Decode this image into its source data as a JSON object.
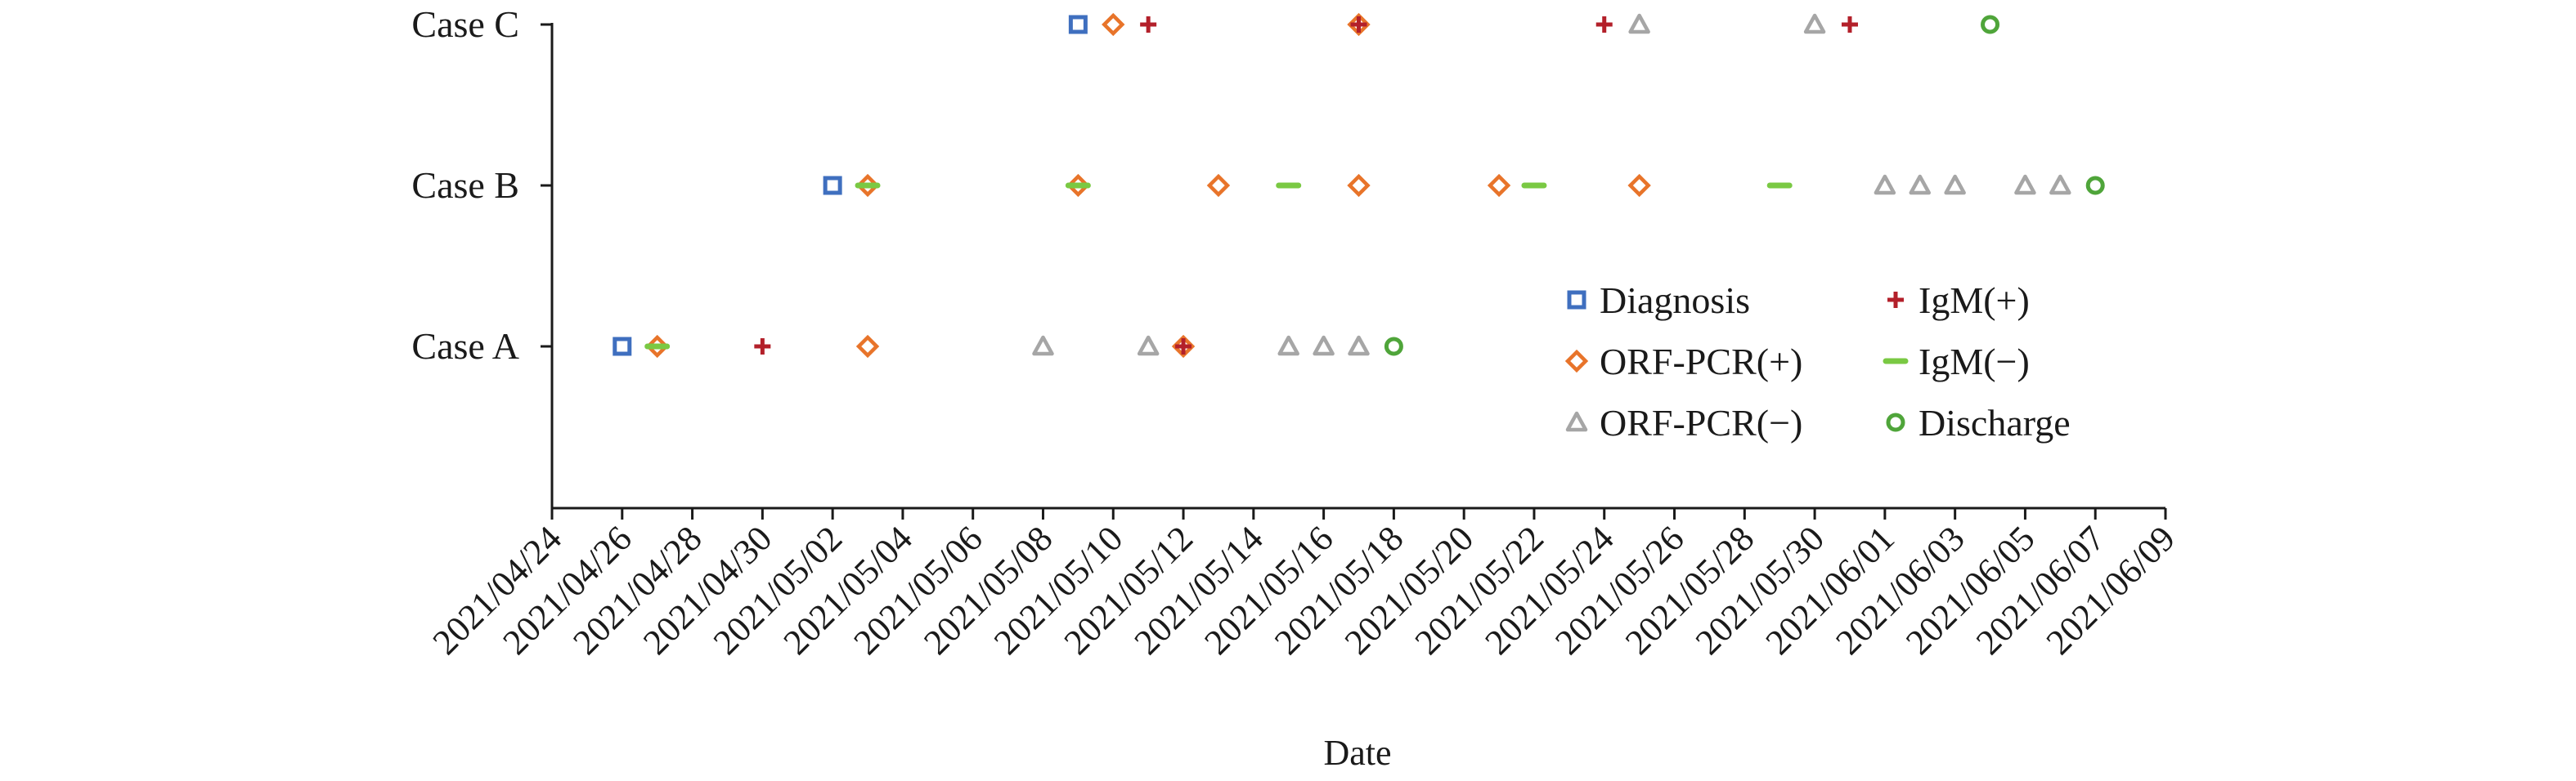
{
  "chart_data": {
    "type": "scatter",
    "xlabel": "Date",
    "ylabel": "",
    "categories": [
      "Case A",
      "Case B",
      "Case C"
    ],
    "x_ticks": [
      "2021/04/24",
      "2021/04/26",
      "2021/04/28",
      "2021/04/30",
      "2021/05/02",
      "2021/05/04",
      "2021/05/06",
      "2021/05/08",
      "2021/05/10",
      "2021/05/12",
      "2021/05/14",
      "2021/05/16",
      "2021/05/18",
      "2021/05/20",
      "2021/05/22",
      "2021/05/24",
      "2021/05/26",
      "2021/05/28",
      "2021/05/30",
      "2021/06/01",
      "2021/06/03",
      "2021/06/05",
      "2021/06/07",
      "2021/06/09"
    ],
    "xlim": [
      "2021/04/24",
      "2021/06/09"
    ],
    "grid": false,
    "legend_position": "right, inside plot",
    "series": [
      {
        "name": "Diagnosis",
        "marker": "square",
        "color": "#3f6fbf",
        "points": [
          {
            "case": "Case A",
            "date": "2021/04/26"
          },
          {
            "case": "Case B",
            "date": "2021/05/02"
          },
          {
            "case": "Case C",
            "date": "2021/05/09"
          }
        ]
      },
      {
        "name": "ORF-PCR(+)",
        "marker": "diamond",
        "color": "#e8742a",
        "points": [
          {
            "case": "Case A",
            "date": "2021/04/27"
          },
          {
            "case": "Case A",
            "date": "2021/05/03"
          },
          {
            "case": "Case A",
            "date": "2021/05/12"
          },
          {
            "case": "Case B",
            "date": "2021/05/03"
          },
          {
            "case": "Case B",
            "date": "2021/05/09"
          },
          {
            "case": "Case B",
            "date": "2021/05/13"
          },
          {
            "case": "Case B",
            "date": "2021/05/17"
          },
          {
            "case": "Case B",
            "date": "2021/05/21"
          },
          {
            "case": "Case B",
            "date": "2021/05/25"
          },
          {
            "case": "Case C",
            "date": "2021/05/10"
          },
          {
            "case": "Case C",
            "date": "2021/05/17"
          }
        ]
      },
      {
        "name": "ORF-PCR(−)",
        "marker": "triangle",
        "color": "#a6a6a6",
        "points": [
          {
            "case": "Case A",
            "date": "2021/05/08"
          },
          {
            "case": "Case A",
            "date": "2021/05/11"
          },
          {
            "case": "Case A",
            "date": "2021/05/15"
          },
          {
            "case": "Case A",
            "date": "2021/05/16"
          },
          {
            "case": "Case A",
            "date": "2021/05/17"
          },
          {
            "case": "Case B",
            "date": "2021/06/01"
          },
          {
            "case": "Case B",
            "date": "2021/06/02"
          },
          {
            "case": "Case B",
            "date": "2021/06/03"
          },
          {
            "case": "Case B",
            "date": "2021/06/05"
          },
          {
            "case": "Case B",
            "date": "2021/06/06"
          },
          {
            "case": "Case C",
            "date": "2021/05/25"
          },
          {
            "case": "Case C",
            "date": "2021/05/30"
          }
        ]
      },
      {
        "name": "IgM(+)",
        "marker": "plus",
        "color": "#b3202a",
        "points": [
          {
            "case": "Case A",
            "date": "2021/04/30"
          },
          {
            "case": "Case A",
            "date": "2021/05/12"
          },
          {
            "case": "Case C",
            "date": "2021/05/11"
          },
          {
            "case": "Case C",
            "date": "2021/05/17"
          },
          {
            "case": "Case C",
            "date": "2021/05/24"
          },
          {
            "case": "Case C",
            "date": "2021/05/31"
          }
        ]
      },
      {
        "name": "IgM(−)",
        "marker": "dash",
        "color": "#7ac943",
        "points": [
          {
            "case": "Case A",
            "date": "2021/04/27"
          },
          {
            "case": "Case B",
            "date": "2021/05/03"
          },
          {
            "case": "Case B",
            "date": "2021/05/09"
          },
          {
            "case": "Case B",
            "date": "2021/05/15"
          },
          {
            "case": "Case B",
            "date": "2021/05/22"
          },
          {
            "case": "Case B",
            "date": "2021/05/29"
          }
        ]
      },
      {
        "name": "Discharge",
        "marker": "circle",
        "color": "#4fa53a",
        "points": [
          {
            "case": "Case A",
            "date": "2021/05/18"
          },
          {
            "case": "Case B",
            "date": "2021/06/07"
          },
          {
            "case": "Case C",
            "date": "2021/06/04"
          }
        ]
      }
    ]
  }
}
